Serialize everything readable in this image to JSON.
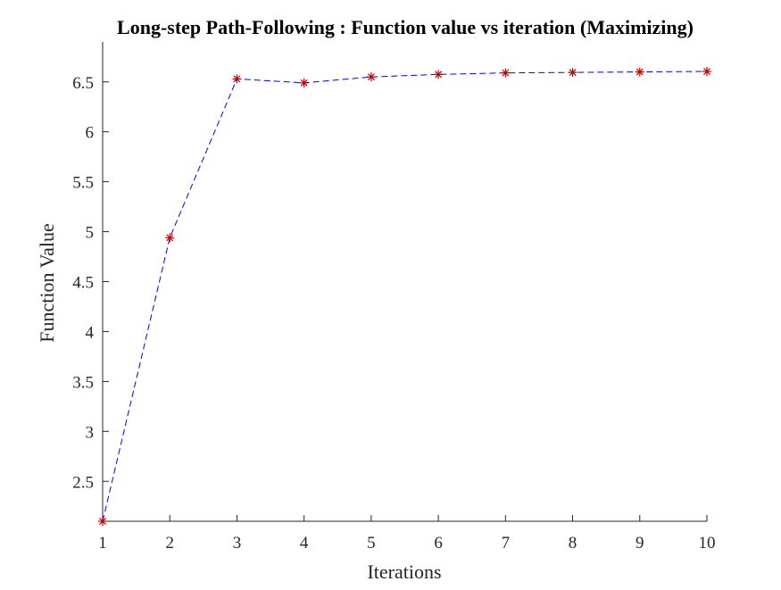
{
  "chart_data": {
    "type": "line",
    "title": "Long-step Path-Following : Function value vs iteration (Maximizing)",
    "xlabel": "Iterations",
    "ylabel": "Function Value",
    "x": [
      1,
      2,
      3,
      4,
      5,
      6,
      7,
      8,
      9,
      10
    ],
    "series": [
      {
        "values": [
          2.1,
          4.94,
          6.53,
          6.49,
          6.55,
          6.575,
          6.59,
          6.595,
          6.6,
          6.605
        ],
        "line_color": "#0000ff",
        "line_style": "dashed",
        "marker": "asterisk",
        "marker_color": "#c00000"
      }
    ],
    "xlim": [
      1,
      10
    ],
    "ylim": [
      2.1,
      6.9
    ],
    "xticks": [
      1,
      2,
      3,
      4,
      5,
      6,
      7,
      8,
      9,
      10
    ],
    "xtick_labels": [
      "1",
      "2",
      "3",
      "4",
      "5",
      "6",
      "7",
      "8",
      "9",
      "10"
    ],
    "yticks": [
      2.5,
      3,
      3.5,
      4,
      4.5,
      5,
      5.5,
      6,
      6.5
    ],
    "ytick_labels": [
      "2.5",
      "3",
      "3.5",
      "4",
      "4.5",
      "5",
      "5.5",
      "6",
      "6.5"
    ],
    "grid": false,
    "legend": false
  }
}
